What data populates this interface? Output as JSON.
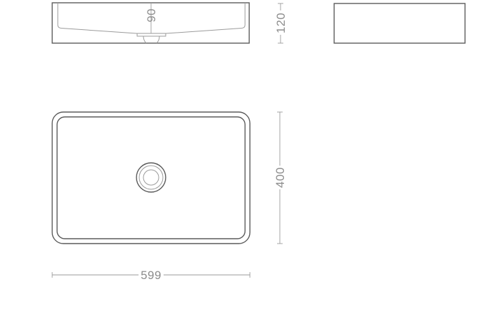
{
  "drawing": {
    "views": [
      "front-section",
      "side",
      "top"
    ],
    "dimensions": {
      "inner_depth": "90",
      "height": "120",
      "depth": "400",
      "width": "599"
    },
    "colors": {
      "line": "#5a5a5a",
      "dimension_line": "#9a9a9a",
      "dimension_text": "#8c8c8c",
      "background": "#ffffff"
    }
  }
}
